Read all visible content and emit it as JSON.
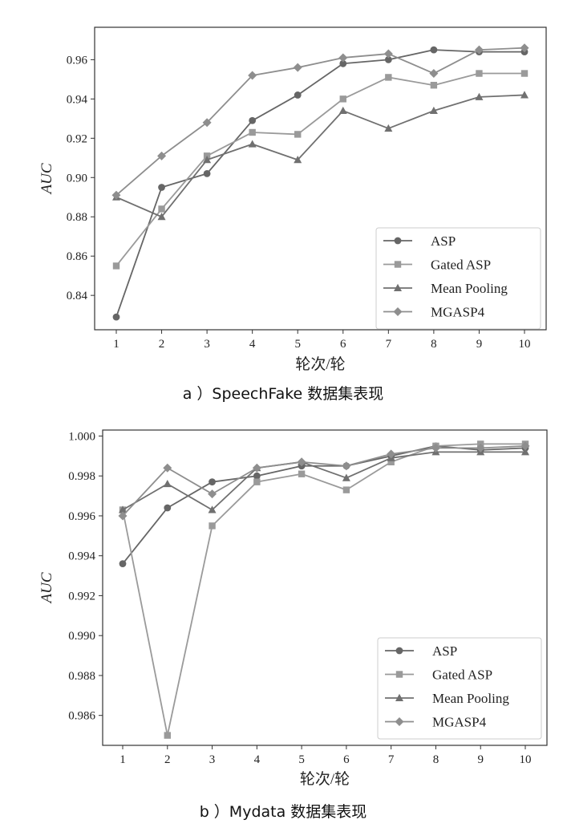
{
  "colors": {
    "ASP": "#666666",
    "Gated ASP": "#9a9a9a",
    "Mean Pooling": "#707070",
    "MGASP4": "#8e8e8e",
    "axis": "#333333"
  },
  "chart_data": [
    {
      "type": "line",
      "caption": "a ）SpeechFake 数据集表现",
      "xlabel": "轮次/轮",
      "ylabel": "AUC",
      "x": [
        1,
        2,
        3,
        4,
        5,
        6,
        7,
        8,
        9,
        10
      ],
      "xticks": [
        "1",
        "2",
        "3",
        "4",
        "5",
        "6",
        "7",
        "8",
        "9",
        "10"
      ],
      "ylim": [
        0.8225,
        0.9765
      ],
      "yticks": [
        0.84,
        0.86,
        0.88,
        0.9,
        0.92,
        0.94,
        0.96
      ],
      "ytick_labels": [
        "0.84",
        "0.86",
        "0.88",
        "0.90",
        "0.92",
        "0.94",
        "0.96"
      ],
      "legend_position": "lower-right",
      "series": [
        {
          "name": "ASP",
          "marker": "circle",
          "values": [
            0.829,
            0.895,
            0.902,
            0.929,
            0.942,
            0.958,
            0.96,
            0.965,
            0.964,
            0.964
          ]
        },
        {
          "name": "Gated ASP",
          "marker": "square",
          "values": [
            0.855,
            0.884,
            0.911,
            0.923,
            0.922,
            0.94,
            0.951,
            0.947,
            0.953,
            0.953
          ]
        },
        {
          "name": "Mean Pooling",
          "marker": "triangle",
          "values": [
            0.89,
            0.88,
            0.909,
            0.917,
            0.909,
            0.934,
            0.925,
            0.934,
            0.941,
            0.942
          ]
        },
        {
          "name": "MGASP4",
          "marker": "diamond",
          "values": [
            0.891,
            0.911,
            0.928,
            0.952,
            0.956,
            0.961,
            0.963,
            0.953,
            0.965,
            0.966
          ]
        }
      ]
    },
    {
      "type": "line",
      "caption": "b ）Mydata 数据集表现",
      "xlabel": "轮次/轮",
      "ylabel": "AUC",
      "x": [
        1,
        2,
        3,
        4,
        5,
        6,
        7,
        8,
        9,
        10
      ],
      "xticks": [
        "1",
        "2",
        "3",
        "4",
        "5",
        "6",
        "7",
        "8",
        "9",
        "10"
      ],
      "ylim": [
        0.9845,
        1.0003
      ],
      "yticks": [
        0.986,
        0.988,
        0.99,
        0.992,
        0.994,
        0.996,
        0.998,
        1.0
      ],
      "ytick_labels": [
        "0.986",
        "0.988",
        "0.990",
        "0.992",
        "0.994",
        "0.996",
        "0.998",
        "1.000"
      ],
      "legend_position": "lower-right",
      "series": [
        {
          "name": "ASP",
          "marker": "circle",
          "values": [
            0.9936,
            0.9964,
            0.9977,
            0.998,
            0.9985,
            0.9985,
            0.999,
            0.9995,
            0.9993,
            0.9994
          ]
        },
        {
          "name": "Gated ASP",
          "marker": "square",
          "values": [
            0.9963,
            0.985,
            0.9955,
            0.9977,
            0.9981,
            0.9973,
            0.9987,
            0.9995,
            0.9996,
            0.9996
          ]
        },
        {
          "name": "Mean Pooling",
          "marker": "triangle",
          "values": [
            0.9963,
            0.9976,
            0.9963,
            0.9984,
            0.9987,
            0.9979,
            0.9989,
            0.9992,
            0.9992,
            0.9992
          ]
        },
        {
          "name": "MGASP4",
          "marker": "diamond",
          "values": [
            0.996,
            0.9984,
            0.9971,
            0.9984,
            0.9987,
            0.9985,
            0.9991,
            0.9994,
            0.9994,
            0.9995
          ]
        }
      ]
    }
  ]
}
